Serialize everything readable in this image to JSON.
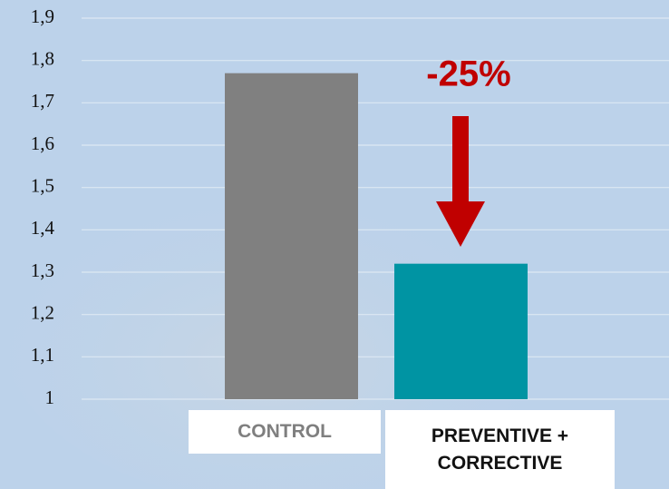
{
  "chart_data": {
    "type": "bar",
    "categories": [
      "CONTROL",
      "PREVENTIVE + CORRECTIVE"
    ],
    "values": [
      1.77,
      1.32
    ],
    "colors": [
      "#808080",
      "#0094a3"
    ],
    "ylim": [
      1,
      1.9
    ],
    "yticks": [
      1,
      {
        "value": 1.1,
        "label": "1,1"
      },
      {
        "value": 1.2,
        "label": "1,2"
      },
      {
        "value": 1.3,
        "label": "1,3"
      },
      {
        "value": 1.4,
        "label": "1,4"
      },
      {
        "value": 1.5,
        "label": "1,5"
      },
      {
        "value": 1.6,
        "label": "1,6"
      },
      {
        "value": 1.7,
        "label": "1,7"
      },
      {
        "value": 1.8,
        "label": "1,8"
      },
      {
        "value": 1.9,
        "label": "1,9"
      }
    ],
    "grid": true,
    "annotation": "-25%"
  }
}
